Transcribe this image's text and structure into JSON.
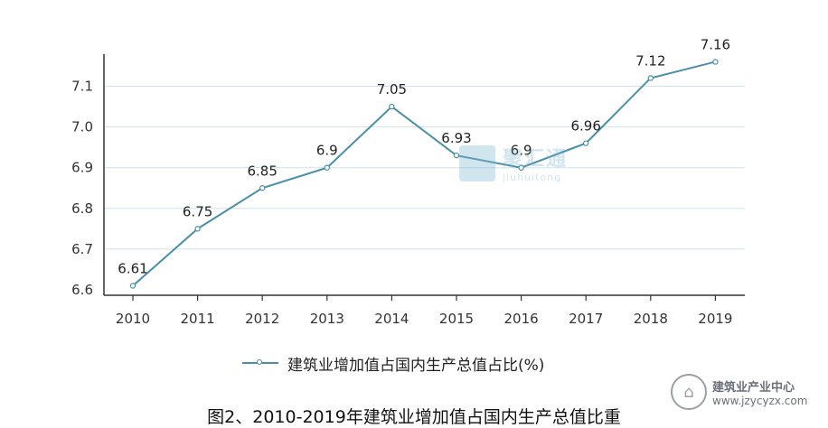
{
  "chart_data": {
    "type": "line",
    "title": "",
    "xlabel": "",
    "ylabel": "",
    "categories": [
      "2010",
      "2011",
      "2012",
      "2013",
      "2014",
      "2015",
      "2016",
      "2017",
      "2018",
      "2019"
    ],
    "series": [
      {
        "name": "建筑业增加值占国内生产总值占比(%)",
        "values": [
          6.61,
          6.75,
          6.85,
          6.9,
          7.05,
          6.93,
          6.9,
          6.96,
          7.12,
          7.16
        ],
        "labels": [
          "6.61",
          "6.75",
          "6.85",
          "6.9",
          "7.05",
          "6.93",
          "6.9",
          "6.96",
          "7.12",
          "7.16"
        ]
      }
    ],
    "ylim": [
      6.6,
      7.16
    ],
    "yticks": [
      6.6,
      6.7,
      6.8,
      6.9,
      7.0,
      7.1
    ],
    "yticklabels": [
      "6.6",
      "6.7",
      "6.8",
      "6.9",
      "7.0",
      "7.1"
    ],
    "grid": "horizontal",
    "legend": "bottom",
    "line_color": "#4a8fa8",
    "grid_color": "#cde2ec"
  },
  "caption": "图2、2010-2019年建筑业增加值占国内生产总值比重",
  "watermark": {
    "line1": "聚汇通",
    "line2": "jiuhuitong"
  },
  "source_logo": {
    "title": "建筑业产业中心",
    "url": "www.jzycyzx.com"
  }
}
